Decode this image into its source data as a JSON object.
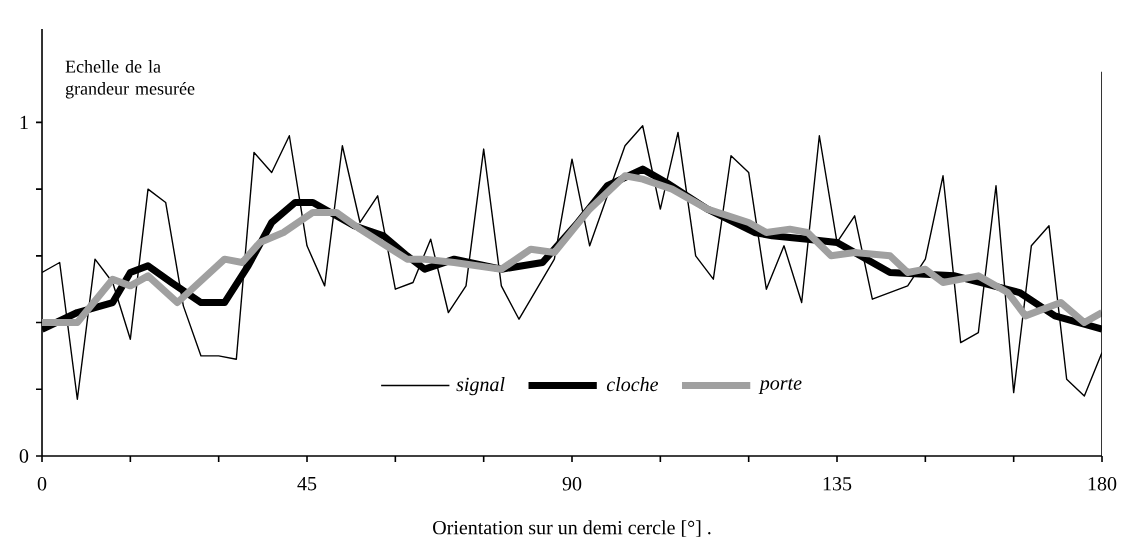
{
  "chart_data": {
    "type": "line",
    "xlabel": "Orientation sur un demi cercle [°] .",
    "ylabel": "Echelle de la grandeur mesurée",
    "xlim": [
      0,
      180
    ],
    "ylim": [
      0,
      1.28
    ],
    "xticks": [
      0,
      {
        "value": 15,
        "label": null
      },
      {
        "value": 30,
        "label": null
      },
      45,
      {
        "value": 60,
        "label": null
      },
      {
        "value": 75,
        "label": null
      },
      90,
      {
        "value": 105,
        "label": null
      },
      {
        "value": 120,
        "label": null
      },
      135,
      {
        "value": 150,
        "label": null
      },
      {
        "value": 165,
        "label": null
      },
      180
    ],
    "yticks": [
      0,
      {
        "value": 0.2,
        "label": null
      },
      {
        "value": 0.4,
        "label": null
      },
      {
        "value": 0.6,
        "label": null
      },
      {
        "value": 0.8,
        "label": null
      },
      1
    ],
    "legend": "bottom",
    "grid": false,
    "marker": "none",
    "series": [
      {
        "name": "signal",
        "color": "#000000",
        "x": [
          0,
          3,
          6,
          9,
          12,
          15,
          18,
          21,
          24,
          27,
          30,
          33,
          36,
          39,
          42,
          45,
          48,
          51,
          54,
          57,
          60,
          63,
          66,
          69,
          72,
          75,
          78,
          81,
          84,
          87,
          90,
          93,
          96,
          99,
          102,
          105,
          108,
          111,
          114,
          117,
          120,
          123,
          126,
          129,
          132,
          135,
          138,
          141,
          144,
          147,
          150,
          153,
          156,
          159,
          162,
          165,
          168,
          171,
          174,
          177,
          180
        ],
        "values": [
          0.55,
          0.58,
          0.17,
          0.59,
          0.52,
          0.35,
          0.8,
          0.76,
          0.45,
          0.3,
          0.3,
          0.29,
          0.91,
          0.85,
          0.96,
          0.63,
          0.51,
          0.93,
          0.7,
          0.78,
          0.5,
          0.52,
          0.65,
          0.43,
          0.51,
          0.92,
          0.51,
          0.41,
          0.5,
          0.59,
          0.89,
          0.63,
          0.78,
          0.93,
          0.99,
          0.74,
          0.97,
          0.6,
          0.53,
          0.9,
          0.85,
          0.5,
          0.63,
          0.46,
          0.96,
          0.64,
          0.72,
          0.47,
          0.49,
          0.51,
          0.59,
          0.84,
          0.34,
          0.37,
          0.81,
          0.19,
          0.63,
          0.69,
          0.23,
          0.18,
          0.31
        ]
      },
      {
        "name": "cloche",
        "color": "#000000",
        "x": [
          0,
          6,
          12,
          15,
          18,
          22,
          27,
          31,
          35,
          39,
          43,
          46,
          53,
          58,
          62,
          65,
          70,
          78,
          85,
          91,
          96,
          102,
          106,
          113,
          121,
          124,
          130,
          135,
          144,
          155,
          166,
          172,
          180
        ],
        "values": [
          0.38,
          0.43,
          0.46,
          0.55,
          0.57,
          0.52,
          0.46,
          0.46,
          0.57,
          0.7,
          0.76,
          0.76,
          0.69,
          0.66,
          0.6,
          0.56,
          0.59,
          0.56,
          0.58,
          0.7,
          0.81,
          0.86,
          0.82,
          0.74,
          0.67,
          0.66,
          0.65,
          0.64,
          0.55,
          0.54,
          0.49,
          0.42,
          0.38
        ]
      },
      {
        "name": "porte",
        "color": "#a0a0a0",
        "x": [
          0,
          6,
          12,
          15,
          18,
          23,
          31,
          34,
          37,
          41,
          46,
          50,
          54,
          62,
          65,
          70,
          78,
          83,
          87,
          93,
          99,
          102,
          107,
          113,
          120,
          123,
          127,
          130,
          134,
          138,
          144,
          147,
          150,
          153,
          159,
          164,
          167,
          173,
          177,
          180
        ],
        "values": [
          0.4,
          0.4,
          0.53,
          0.51,
          0.54,
          0.46,
          0.59,
          0.58,
          0.64,
          0.67,
          0.73,
          0.73,
          0.68,
          0.59,
          0.59,
          0.58,
          0.56,
          0.62,
          0.61,
          0.74,
          0.84,
          0.83,
          0.8,
          0.74,
          0.7,
          0.67,
          0.68,
          0.67,
          0.6,
          0.61,
          0.6,
          0.55,
          0.56,
          0.52,
          0.54,
          0.49,
          0.42,
          0.46,
          0.4,
          0.43
        ]
      }
    ]
  }
}
